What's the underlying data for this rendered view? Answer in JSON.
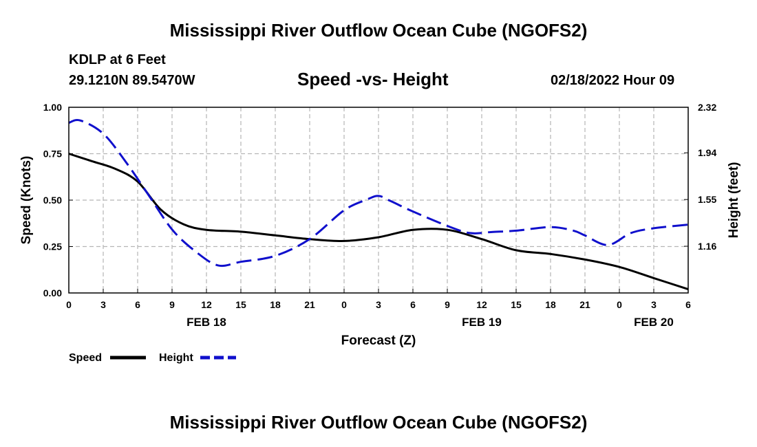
{
  "header": {
    "main_title": "Mississippi River Outflow Ocean Cube (NGOFS2)",
    "station": "KDLP at 6 Feet",
    "coords": "29.1210N  89.5470W",
    "subtitle": "Speed -vs- Height",
    "datetime": "02/18/2022 Hour 09"
  },
  "footer": {
    "repeat_title": "Mississippi River Outflow Ocean Cube (NGOFS2)"
  },
  "chart_data": {
    "type": "line",
    "xlabel": "Forecast (Z)",
    "ylabel": "Speed (Knots)",
    "y2label": "Height (feet)",
    "x_tick_labels": [
      "0",
      "3",
      "6",
      "9",
      "12",
      "15",
      "18",
      "21",
      "0",
      "3",
      "6",
      "9",
      "12",
      "15",
      "18",
      "21",
      "0",
      "3",
      "6"
    ],
    "x_range_hours": [
      0,
      54
    ],
    "date_labels": [
      {
        "label": "FEB 18",
        "hour": 12
      },
      {
        "label": "FEB 19",
        "hour": 36
      },
      {
        "label": "FEB 20",
        "hour": 51
      }
    ],
    "ylim": [
      0,
      1
    ],
    "y_ticks": [
      0,
      0.25,
      0.5,
      0.75,
      1
    ],
    "y_tick_labels": [
      "0.00",
      "0.25",
      "0.50",
      "0.75",
      "1.00"
    ],
    "y2lim": [
      0.77,
      2.32
    ],
    "y2_ticks": [
      1.16,
      1.55,
      1.94,
      2.32
    ],
    "y2_tick_labels": [
      "1.16",
      "1.55",
      "1.94",
      "2.32"
    ],
    "grid": true,
    "legend_position": "bottom-left",
    "series": [
      {
        "name": "Speed",
        "axis": "left",
        "color": "#000000",
        "style": "solid",
        "x": [
          0,
          2,
          4,
          6,
          8,
          10,
          12,
          15,
          18,
          21,
          24,
          27,
          30,
          33,
          36,
          39,
          42,
          45,
          48,
          51,
          54
        ],
        "values": [
          0.75,
          0.71,
          0.67,
          0.6,
          0.45,
          0.37,
          0.34,
          0.33,
          0.31,
          0.29,
          0.28,
          0.3,
          0.34,
          0.34,
          0.29,
          0.23,
          0.21,
          0.18,
          0.14,
          0.08,
          0.02
        ]
      },
      {
        "name": "Height",
        "axis": "right",
        "color": "#1010cc",
        "style": "dashed",
        "x": [
          0,
          1,
          3,
          5,
          7,
          9,
          11,
          13,
          15,
          18,
          21,
          24,
          26,
          27,
          28,
          30,
          33,
          35,
          37,
          39,
          42,
          44,
          45,
          47,
          49,
          51,
          54
        ],
        "values": [
          2.19,
          2.21,
          2.1,
          1.86,
          1.58,
          1.3,
          1.12,
          1.0,
          1.03,
          1.08,
          1.22,
          1.46,
          1.55,
          1.58,
          1.54,
          1.45,
          1.33,
          1.27,
          1.28,
          1.29,
          1.32,
          1.29,
          1.25,
          1.17,
          1.27,
          1.31,
          1.34
        ]
      }
    ]
  }
}
